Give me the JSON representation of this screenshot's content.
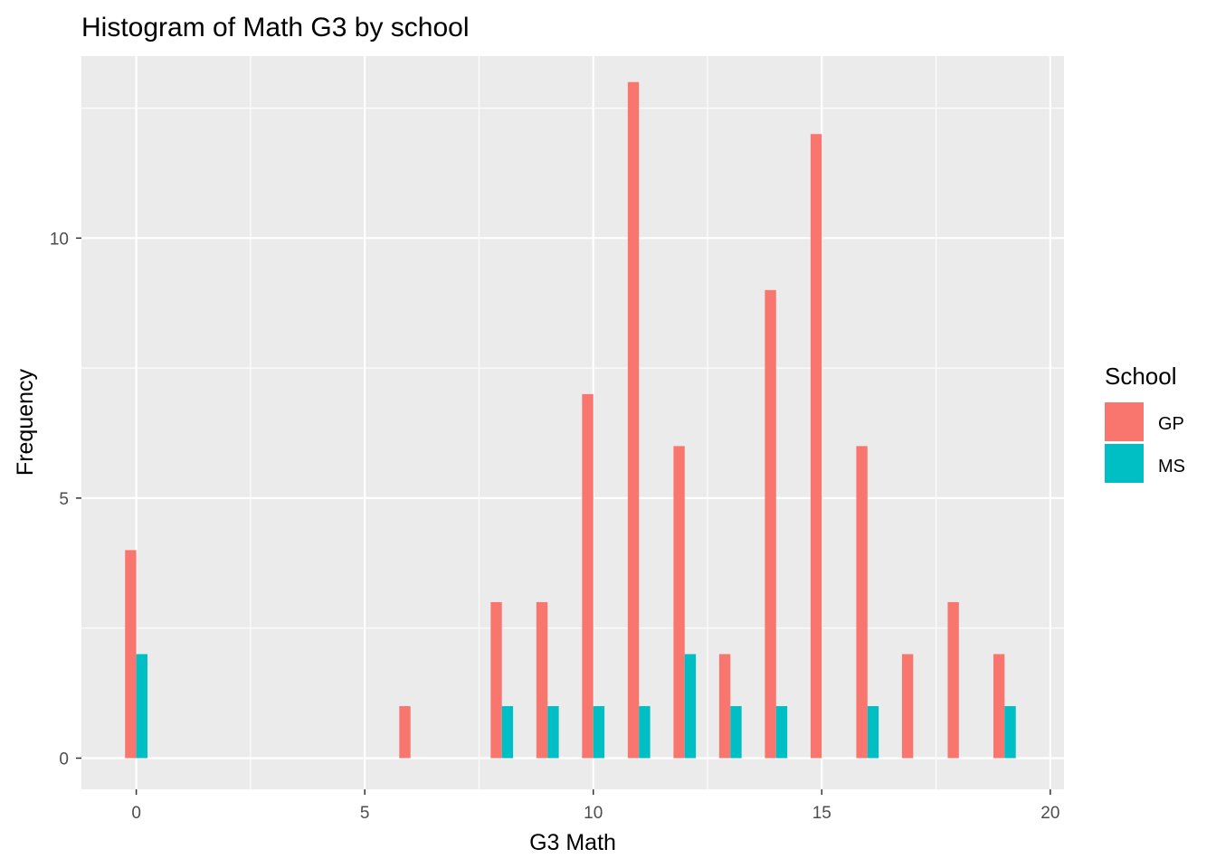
{
  "chart_data": {
    "type": "bar",
    "title": "Histogram of Math G3 by school",
    "xlabel": "G3 Math",
    "ylabel": "Frequency",
    "xlim": [
      -1.2,
      20.3
    ],
    "ylim": [
      -0.6,
      13.5
    ],
    "x_ticks": [
      "0",
      "5",
      "10",
      "15",
      "20"
    ],
    "y_ticks": [
      "0",
      "5",
      "10"
    ],
    "grid": true,
    "legend": {
      "title": "School",
      "position": "right",
      "entries": [
        "GP",
        "MS"
      ]
    },
    "series": [
      {
        "name": "GP",
        "color": "#F8766D",
        "points": [
          {
            "x": 0,
            "y": 4
          },
          {
            "x": 6,
            "y": 1
          },
          {
            "x": 8,
            "y": 3
          },
          {
            "x": 9,
            "y": 3
          },
          {
            "x": 10,
            "y": 7
          },
          {
            "x": 11,
            "y": 13
          },
          {
            "x": 12,
            "y": 6
          },
          {
            "x": 13,
            "y": 2
          },
          {
            "x": 14,
            "y": 9
          },
          {
            "x": 15,
            "y": 12
          },
          {
            "x": 16,
            "y": 6
          },
          {
            "x": 17,
            "y": 2
          },
          {
            "x": 18,
            "y": 3
          },
          {
            "x": 19,
            "y": 2
          }
        ]
      },
      {
        "name": "MS",
        "color": "#00BFC4",
        "points": [
          {
            "x": 0,
            "y": 2
          },
          {
            "x": 8,
            "y": 1
          },
          {
            "x": 9,
            "y": 1
          },
          {
            "x": 10,
            "y": 1
          },
          {
            "x": 11,
            "y": 1
          },
          {
            "x": 12,
            "y": 2
          },
          {
            "x": 13,
            "y": 1
          },
          {
            "x": 14,
            "y": 1
          },
          {
            "x": 16,
            "y": 1
          },
          {
            "x": 19,
            "y": 1
          }
        ]
      }
    ]
  },
  "colors": {
    "panel_background": "#EBEBEB",
    "grid": "#FFFFFF",
    "axis_text": "#4D4D4D",
    "tick": "#333333"
  }
}
